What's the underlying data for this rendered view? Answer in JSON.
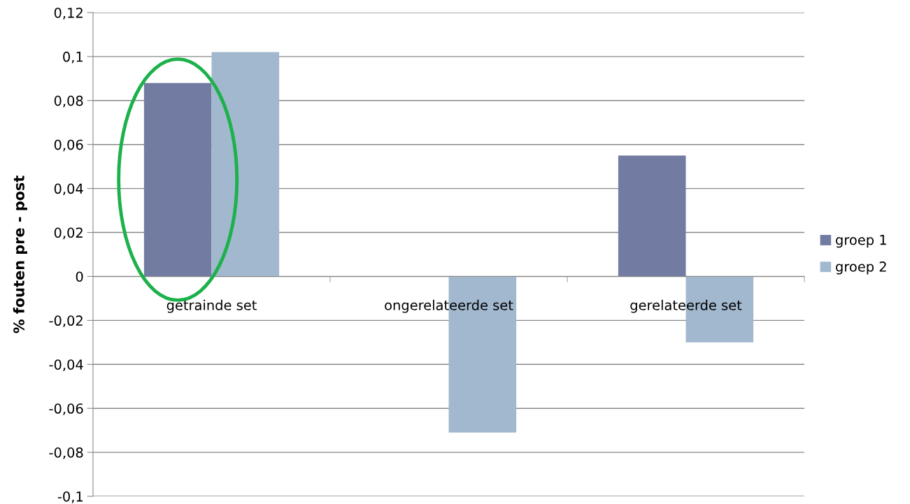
{
  "chart_data": {
    "type": "bar",
    "ylabel": "% fouten pre - post",
    "categories": [
      "getrainde set",
      "ongerelateerde set",
      "gerelateerde set"
    ],
    "series": [
      {
        "name": "groep 1",
        "color": "#727ca2",
        "values": [
          0.088,
          0,
          0.055
        ]
      },
      {
        "name": "groep 2",
        "color": "#a2b8ce",
        "values": [
          0.102,
          -0.071,
          -0.03
        ]
      }
    ],
    "ylim": [
      -0.1,
      0.12
    ],
    "yticks": [
      {
        "value": -0.1,
        "label": "-0,1"
      },
      {
        "value": -0.08,
        "label": "-0,08"
      },
      {
        "value": -0.06,
        "label": "-0,06"
      },
      {
        "value": -0.04,
        "label": "-0,04"
      },
      {
        "value": -0.02,
        "label": "-0,02"
      },
      {
        "value": 0,
        "label": "0"
      },
      {
        "value": 0.02,
        "label": "0,02"
      },
      {
        "value": 0.04,
        "label": "0,04"
      },
      {
        "value": 0.06,
        "label": "0,06"
      },
      {
        "value": 0.08,
        "label": "0,08"
      },
      {
        "value": 0.1,
        "label": "0,1"
      },
      {
        "value": 0.12,
        "label": "0,12"
      }
    ],
    "grid": "y",
    "legend": "right"
  }
}
